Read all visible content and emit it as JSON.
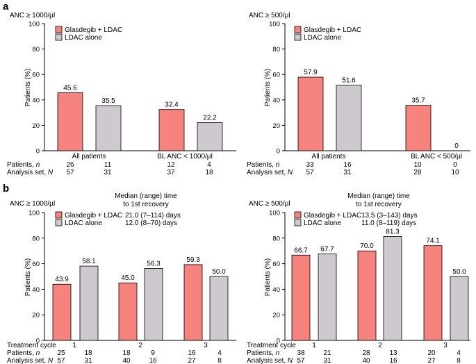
{
  "panels": [
    {
      "letter": "a"
    },
    {
      "letter": "b"
    }
  ],
  "colors": {
    "glasdegib_ldac": "#f7837e",
    "ldac_alone": "#cdc9cf"
  },
  "chart_data": [
    {
      "type": "bar",
      "title": "ANC ≥ 1000/µl",
      "ylabel": "Patients (%)",
      "ylim": [
        0,
        100
      ],
      "yticks": [
        0,
        20,
        40,
        60,
        80,
        100
      ],
      "categories": [
        "All patients",
        "BL ANC < 1000/µl"
      ],
      "series": [
        {
          "name": "Glasdegib + LDAC",
          "values": [
            45.6,
            32.4
          ]
        },
        {
          "name": "LDAC alone",
          "values": [
            35.5,
            22.2
          ]
        }
      ],
      "value_labels": [
        "45.6",
        "32.4",
        "35.5",
        "22.2"
      ],
      "table": {
        "patients_label": "Patients, ",
        "patients_symbol": "n",
        "analysis_label": "Analysis set, ",
        "analysis_symbol": "N",
        "patients": [
          "26",
          "11",
          "12",
          "4"
        ],
        "analysis_set": [
          "57",
          "31",
          "37",
          "18"
        ]
      }
    },
    {
      "type": "bar",
      "title": "ANC ≥ 500/µl",
      "ylabel": "Patients (%)",
      "ylim": [
        0,
        100
      ],
      "yticks": [
        0,
        20,
        40,
        60,
        80,
        100
      ],
      "categories": [
        "All patients",
        "BL ANC < 500/µl"
      ],
      "series": [
        {
          "name": "Glasdegib + LDAC",
          "values": [
            57.9,
            35.7
          ]
        },
        {
          "name": "LDAC alone",
          "values": [
            51.6,
            0
          ]
        }
      ],
      "value_labels": [
        "57.9",
        "35.7",
        "51.6",
        "0"
      ],
      "table": {
        "patients_label": "Patients, ",
        "patients_symbol": "n",
        "analysis_label": "Analysis set, ",
        "analysis_symbol": "N",
        "patients": [
          "33",
          "16",
          "10",
          "0"
        ],
        "analysis_set": [
          "57",
          "31",
          "28",
          "10"
        ]
      }
    },
    {
      "type": "bar",
      "title": "ANC ≥ 1000/µl",
      "median_title_1": "Median (range) time",
      "median_title_2": "to 1st recovery",
      "medians": [
        "21.0 (7–114) days",
        "12.0 (8–70) days"
      ],
      "ylabel": "Patients (%)",
      "ylim": [
        0,
        100
      ],
      "yticks": [
        0,
        20,
        40,
        60,
        80,
        100
      ],
      "categories": [
        "1",
        "2",
        "3"
      ],
      "series": [
        {
          "name": "Glasdegib + LDAC",
          "values": [
            43.9,
            45.0,
            59.3
          ]
        },
        {
          "name": "LDAC alone",
          "values": [
            58.1,
            56.3,
            50.0
          ]
        }
      ],
      "value_labels": [
        "43.9",
        "45.0",
        "59.3",
        "58.1",
        "56.3",
        "50.0"
      ],
      "table": {
        "cycle_label": "Treatment cycle",
        "patients_label": "Patients, ",
        "patients_symbol": "n",
        "analysis_label": "Analysis set, ",
        "analysis_symbol": "N",
        "patients": [
          "25",
          "18",
          "18",
          "9",
          "16",
          "4"
        ],
        "analysis_set": [
          "57",
          "31",
          "40",
          "16",
          "27",
          "8"
        ]
      }
    },
    {
      "type": "bar",
      "title": "ANC ≥ 500/µl",
      "median_title_1": "Median (range) time",
      "median_title_2": "to 1st recovery",
      "medians": [
        "13.5 (3–143) days",
        "11.0 (8–119) days"
      ],
      "ylabel": "Patients (%)",
      "ylim": [
        0,
        100
      ],
      "yticks": [
        0,
        20,
        40,
        60,
        80,
        100
      ],
      "categories": [
        "1",
        "2",
        "3"
      ],
      "series": [
        {
          "name": "Glasdegib + LDAC",
          "values": [
            66.7,
            70.0,
            74.1
          ]
        },
        {
          "name": "LDAC alone",
          "values": [
            67.7,
            81.3,
            50.0
          ]
        }
      ],
      "value_labels": [
        "66.7",
        "70.0",
        "74.1",
        "67.7",
        "81.3",
        "50.0"
      ],
      "table": {
        "cycle_label": "Treatment cycle",
        "patients_label": "Patients, ",
        "patients_symbol": "n",
        "analysis_label": "Analysis set, ",
        "analysis_symbol": "N",
        "patients": [
          "38",
          "21",
          "28",
          "13",
          "20",
          "4"
        ],
        "analysis_set": [
          "57",
          "31",
          "40",
          "16",
          "27",
          "8"
        ]
      }
    }
  ]
}
